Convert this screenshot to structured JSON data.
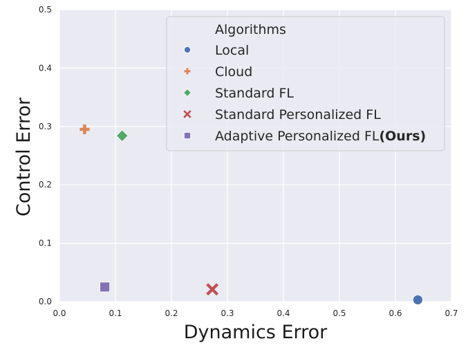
{
  "chart_data": {
    "type": "scatter",
    "xlabel": "Dynamics Error",
    "ylabel": "Control Error",
    "xlim": [
      0.0,
      0.7
    ],
    "ylim": [
      0.0,
      0.5
    ],
    "x_ticks": [
      "0.0",
      "0.1",
      "0.2",
      "0.3",
      "0.4",
      "0.5",
      "0.6",
      "0.7"
    ],
    "y_ticks": [
      "0.0",
      "0.1",
      "0.2",
      "0.3",
      "0.4",
      "0.5"
    ],
    "grid": true,
    "background": "#eaeaf2",
    "legend": {
      "title": "Algorithms",
      "placement": "top-right",
      "entries": [
        "Local",
        "Cloud",
        "Standard FL",
        "Standard Personalized FL",
        "Adaptive Personalized FL"
      ],
      "last_entry_suffix": "(Ours)"
    },
    "series": [
      {
        "name": "Local",
        "marker": "circle",
        "color": "#4c72b0",
        "x": 0.64,
        "y": 0.003
      },
      {
        "name": "Cloud",
        "marker": "plus",
        "color": "#dd8452",
        "x": 0.045,
        "y": 0.295
      },
      {
        "name": "Standard FL",
        "marker": "diamond",
        "color": "#55a868",
        "x": 0.112,
        "y": 0.284
      },
      {
        "name": "Standard Personalized FL",
        "marker": "x",
        "color": "#c44e52",
        "x": 0.273,
        "y": 0.021
      },
      {
        "name": "Adaptive Personalized FL(Ours)",
        "marker": "square",
        "color": "#8172b3",
        "x": 0.081,
        "y": 0.025
      }
    ]
  }
}
